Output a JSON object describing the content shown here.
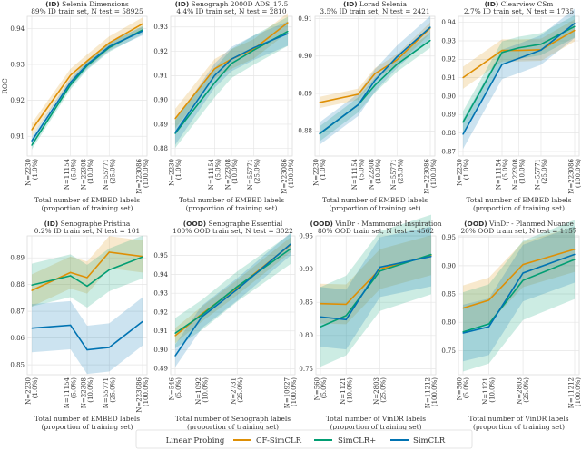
{
  "colors": {
    "CF-SimCLR": "#de8f05",
    "SimCLR+": "#029e73",
    "SimCLR": "#0173b2"
  },
  "legend": {
    "title": "Linear Probing",
    "items": [
      "CF-SimCLR",
      "SimCLR+",
      "SimCLR"
    ],
    "placement": "bottom-center"
  },
  "chart_data": [
    {
      "type": "line",
      "title_prefix": "(ID)",
      "title": "Selenia Dimensions",
      "subtitle": "89% ID train set, N test = 58925",
      "ylabel": "ROC",
      "xlabel": [
        "Total number of EMBED labels",
        "(proportion of training set)"
      ],
      "xscale": "log",
      "x": [
        2230,
        11154,
        22308,
        55771,
        223086
      ],
      "xticklabels": [
        [
          "N=2230",
          "(1.0%)"
        ],
        [
          "N=11154",
          "(5.0%)"
        ],
        [
          "N=22308",
          "(10.0%)"
        ],
        [
          "N=55771",
          "(25.0%)"
        ],
        [
          "N=223086",
          "(100.0%)"
        ]
      ],
      "ylim": [
        0.9045,
        0.9434
      ],
      "yticks": [
        0.91,
        0.92,
        0.93,
        0.94
      ],
      "yticklabels": [
        "0.91",
        "0.92",
        "0.93",
        "0.94"
      ],
      "series": [
        {
          "name": "CF-SimCLR",
          "values": [
            0.9118,
            0.927,
            0.931,
            0.936,
            0.9413
          ],
          "band": 0.0018
        },
        {
          "name": "SimCLR+",
          "values": [
            0.9075,
            0.9243,
            0.9297,
            0.9347,
            0.9396
          ],
          "band": 0.0012
        },
        {
          "name": "SimCLR",
          "values": [
            0.9087,
            0.925,
            0.93,
            0.935,
            0.9393
          ],
          "band": 0.0012
        }
      ]
    },
    {
      "type": "line",
      "title_prefix": "(ID)",
      "title": "Senograph 2000D ADS_17.5",
      "subtitle": "4.4% ID train set, N test = 2810",
      "ylabel": "",
      "xlabel": [
        "Total number of EMBED labels",
        "(proportion of training set)"
      ],
      "xscale": "log",
      "x": [
        2230,
        11154,
        22308,
        55771,
        223086
      ],
      "xticklabels": [
        [
          "N=2230",
          "(1.0%)"
        ],
        [
          "N=11154",
          "(5.0%)"
        ],
        [
          "N=22308",
          "(10.0%)"
        ],
        [
          "N=55771",
          "(25.0%)"
        ],
        [
          "N=223086",
          "(100.0%)"
        ]
      ],
      "ylim": [
        0.8769,
        0.9344
      ],
      "yticks": [
        0.88,
        0.89,
        0.9,
        0.91,
        0.92,
        0.93
      ],
      "yticklabels": [
        "0.88",
        "0.89",
        "0.90",
        "0.91",
        "0.92",
        "0.93"
      ],
      "series": [
        {
          "name": "CF-SimCLR",
          "values": [
            0.8923,
            0.9128,
            0.9168,
            0.921,
            0.9318
          ],
          "band": 0.004
        },
        {
          "name": "SimCLR+",
          "values": [
            0.8862,
            0.907,
            0.915,
            0.9205,
            0.9282
          ],
          "band": 0.006
        },
        {
          "name": "SimCLR",
          "values": [
            0.8865,
            0.91,
            0.9168,
            0.9215,
            0.9273
          ],
          "band": 0.005
        }
      ]
    },
    {
      "type": "line",
      "title_prefix": "(ID)",
      "title": "Lorad Selenia",
      "subtitle": "3.5% ID train set, N test = 2421",
      "ylabel": "",
      "xlabel": [
        "Total number of EMBED labels",
        "(proportion of training set)"
      ],
      "xscale": "log",
      "x": [
        2230,
        11154,
        22308,
        55771,
        223086
      ],
      "xticklabels": [
        [
          "N=2230",
          "(1.0%)"
        ],
        [
          "N=11154",
          "(5.0%)"
        ],
        [
          "N=22308",
          "(10.0%)"
        ],
        [
          "N=55771",
          "(25.0%)"
        ],
        [
          "N=223086",
          "(100.0%)"
        ]
      ],
      "ylim": [
        0.8733,
        0.9106
      ],
      "yticks": [
        0.88,
        0.89,
        0.9,
        0.91
      ],
      "yticklabels": [
        "0.88",
        "0.89",
        "0.90",
        "0.91"
      ],
      "series": [
        {
          "name": "CF-SimCLR",
          "values": [
            0.8876,
            0.8898,
            0.8953,
            0.899,
            0.9075
          ],
          "band": 0.0015
        },
        {
          "name": "SimCLR+",
          "values": [
            0.8792,
            0.887,
            0.8922,
            0.8978,
            0.9042
          ],
          "band": 0.002
        },
        {
          "name": "SimCLR",
          "values": [
            0.8793,
            0.887,
            0.8935,
            0.8998,
            0.9077
          ],
          "band": 0.003
        }
      ]
    },
    {
      "type": "line",
      "title_prefix": "(ID)",
      "title": "Clearview CSm",
      "subtitle": "2.7% ID train set, N test = 1735",
      "ylabel": "",
      "xlabel": [
        "Total number of EMBED labels",
        "(proportion of training set)"
      ],
      "xscale": "log",
      "x": [
        2230,
        11154,
        22308,
        55771,
        223086
      ],
      "xticklabels": [
        [
          "N=2230",
          "(1.0%)"
        ],
        [
          "N=11154",
          "(5.0%)"
        ],
        [
          "N=22308",
          "(10.0%)"
        ],
        [
          "N=55771",
          "(25.0%)"
        ],
        [
          "N=223086",
          "(100.0%)"
        ]
      ],
      "ylim": [
        0.8675,
        0.9433
      ],
      "yticks": [
        0.87,
        0.88,
        0.89,
        0.9,
        0.91,
        0.92,
        0.93,
        0.94
      ],
      "yticklabels": [
        "0.87",
        "0.88",
        "0.89",
        "0.90",
        "0.91",
        "0.92",
        "0.93",
        "0.94"
      ],
      "series": [
        {
          "name": "CF-SimCLR",
          "values": [
            0.91,
            0.9248,
            0.9248,
            0.9252,
            0.9357
          ],
          "band": 0.006
        },
        {
          "name": "SimCLR+",
          "values": [
            0.8858,
            0.9237,
            0.9262,
            0.9282,
            0.9378
          ],
          "band": 0.006
        },
        {
          "name": "SimCLR",
          "values": [
            0.8793,
            0.9172,
            0.9205,
            0.925,
            0.9395
          ],
          "band": 0.008
        }
      ]
    },
    {
      "type": "line",
      "title_prefix": "(ID)",
      "title": "Senographe Pristina",
      "subtitle": "0.2% ID train set, N test = 101",
      "ylabel": "",
      "xlabel": [
        "Total number of EMBED labels",
        "(proportion of training set)"
      ],
      "xscale": "log",
      "x": [
        2230,
        11154,
        22308,
        55771,
        223086
      ],
      "xticklabels": [
        [
          "N=2230",
          "(1.0%)"
        ],
        [
          "N=11154",
          "(5.0%)"
        ],
        [
          "N=22308",
          "(10.0%)"
        ],
        [
          "N=55771",
          "(25.0%)"
        ],
        [
          "N=223086",
          "(100.0%)"
        ]
      ],
      "ylim": [
        0.8463,
        0.8982
      ],
      "yticks": [
        0.85,
        0.86,
        0.87,
        0.88,
        0.89
      ],
      "yticklabels": [
        "0.85",
        "0.86",
        "0.87",
        "0.88",
        "0.89"
      ],
      "series": [
        {
          "name": "CF-SimCLR",
          "values": [
            0.8778,
            0.8845,
            0.8826,
            0.8921,
            0.8905
          ],
          "band": 0.006
        },
        {
          "name": "SimCLR+",
          "values": [
            0.8798,
            0.8833,
            0.8794,
            0.8855,
            0.8903
          ],
          "band": 0.008
        },
        {
          "name": "SimCLR",
          "values": [
            0.8637,
            0.8648,
            0.8556,
            0.8565,
            0.8662
          ],
          "band": 0.009
        }
      ]
    },
    {
      "type": "line",
      "title_prefix": "(OOD)",
      "title": "Senographe Essential",
      "subtitle": "100% OOD train set, N test = 3022",
      "ylabel": "",
      "xlabel": [
        "Total number of Senograph labels",
        "(proportion of training set)"
      ],
      "xscale": "log",
      "x": [
        546,
        1092,
        2731,
        10927
      ],
      "xticklabels": [
        [
          "N=546",
          "(5.0%)"
        ],
        [
          "N=1092",
          "(10.0%)"
        ],
        [
          "N=2731",
          "(25.0%)"
        ],
        [
          "N=10927",
          "(100.0%)"
        ]
      ],
      "ylim": [
        0.8868,
        0.9604
      ],
      "yticks": [
        0.89,
        0.9,
        0.91,
        0.92,
        0.93,
        0.94,
        0.95
      ],
      "yticklabels": [
        "0.89",
        "0.90",
        "0.91",
        "0.92",
        "0.93",
        "0.94",
        "0.95"
      ],
      "series": [
        {
          "name": "CF-SimCLR",
          "values": [
            0.9075,
            0.919,
            0.933,
            0.9557
          ],
          "band": 0.004
        },
        {
          "name": "SimCLR+",
          "values": [
            0.9088,
            0.9185,
            0.9335,
            0.9535
          ],
          "band": 0.008
        },
        {
          "name": "SimCLR",
          "values": [
            0.8968,
            0.9175,
            0.932,
            0.956
          ],
          "band": 0.006
        }
      ]
    },
    {
      "type": "line",
      "title_prefix": "(OOD)",
      "title": "VinDr - Mammomat Inspiration",
      "subtitle": "80% OOD train set, N test = 4562",
      "ylabel": "",
      "xlabel": [
        "Total number of VinDR labels",
        "(proportion of training set)"
      ],
      "xscale": "log",
      "x": [
        560,
        1121,
        2803,
        11212
      ],
      "xticklabels": [
        [
          "N=560",
          "(5.0%)"
        ],
        [
          "N=1121",
          "(10.0%)"
        ],
        [
          "N=2803",
          "(25.0%)"
        ],
        [
          "N=11212",
          "(100.0%)"
        ]
      ],
      "ylim": [
        0.741,
        0.95
      ],
      "yticks": [
        0.75,
        0.8,
        0.85,
        0.9,
        0.95
      ],
      "yticklabels": [
        "0.75",
        "0.80",
        "0.85",
        "0.90",
        "0.95"
      ],
      "series": [
        {
          "name": "CF-SimCLR",
          "values": [
            0.848,
            0.847,
            0.9,
            0.921
          ],
          "band": 0.03
        },
        {
          "name": "SimCLR+",
          "values": [
            0.813,
            0.83,
            0.897,
            0.922
          ],
          "band": 0.06
        },
        {
          "name": "SimCLR",
          "values": [
            0.828,
            0.824,
            0.903,
            0.919
          ],
          "band": 0.045
        }
      ]
    },
    {
      "type": "line",
      "title_prefix": "(OOD)",
      "title": "VinDr - Planmed Nuance",
      "subtitle": "20% OOD train set, N test = 1157",
      "ylabel": "",
      "xlabel": [
        "Total number of VinDR labels",
        "(proportion of training set)"
      ],
      "xscale": "log",
      "x": [
        560,
        1121,
        2803,
        11212
      ],
      "xticklabels": [
        [
          "N=560",
          "(5.0%)"
        ],
        [
          "N=1121",
          "(10.0%)"
        ],
        [
          "N=2803",
          "(25.0%)"
        ],
        [
          "N=11212",
          "(100.0%)"
        ]
      ],
      "ylim": [
        0.7073,
        0.9527
      ],
      "yticks": [
        0.75,
        0.8,
        0.85,
        0.9,
        0.95
      ],
      "yticklabels": [
        "0.75",
        "0.80",
        "0.85",
        "0.90",
        "0.95"
      ],
      "series": [
        {
          "name": "CF-SimCLR",
          "values": [
            0.825,
            0.839,
            0.902,
            0.929
          ],
          "band": 0.04
        },
        {
          "name": "SimCLR+",
          "values": [
            0.783,
            0.797,
            0.874,
            0.911
          ],
          "band": 0.07
        },
        {
          "name": "SimCLR",
          "values": [
            0.781,
            0.792,
            0.887,
            0.92
          ],
          "band": 0.05
        }
      ]
    }
  ]
}
